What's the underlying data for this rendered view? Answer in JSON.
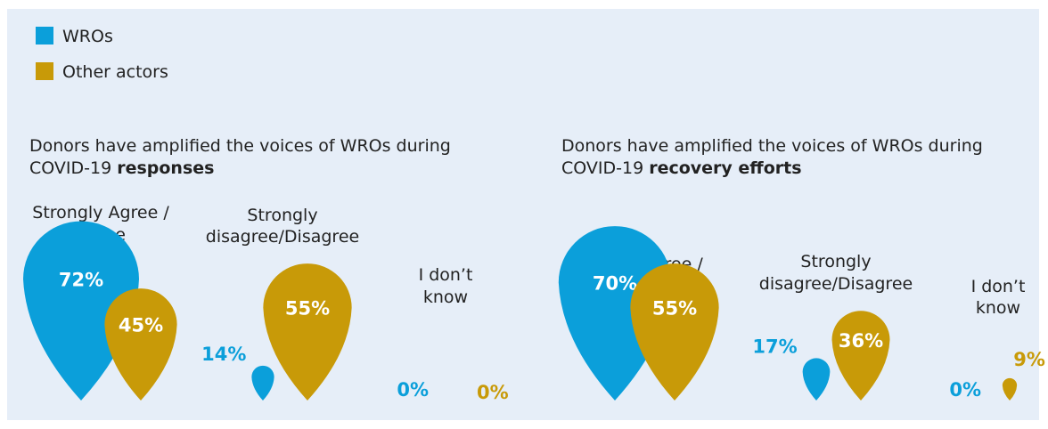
{
  "chart_data": {
    "type": "drop",
    "series": [
      {
        "name": "WROs",
        "color": "#0b9fda"
      },
      {
        "name": "Other actors",
        "color": "#c89a08"
      }
    ],
    "panels": [
      {
        "title": "Donors have amplified the voices of WROs during",
        "title_line2": "COVID-19",
        "title_emphasis": "responses",
        "categories": [
          [
            "Strongly Agree /",
            "Agree"
          ],
          [
            "Strongly",
            "disagree/Disagree"
          ],
          [
            "I don’t",
            "know"
          ]
        ],
        "values": [
          [
            72,
            14,
            0
          ],
          [
            45,
            55,
            0
          ]
        ],
        "value_labels": [
          [
            "72%",
            "14%",
            "0%"
          ],
          [
            "45%",
            "55%",
            "0%"
          ]
        ]
      },
      {
        "title": "Donors have amplified the voices of WROs during",
        "title_line2": "COVID-19",
        "title_emphasis": "recovery efforts",
        "categories": [
          [
            "Strongly Agree /",
            "Agree"
          ],
          [
            "Strongly",
            "disagree/Disagree"
          ],
          [
            "I don’t",
            "know"
          ]
        ],
        "values": [
          [
            70,
            17,
            0
          ],
          [
            55,
            36,
            9
          ]
        ],
        "value_labels": [
          [
            "70%",
            "17%",
            "0%"
          ],
          [
            "55%",
            "36%",
            "9%"
          ]
        ]
      }
    ]
  }
}
